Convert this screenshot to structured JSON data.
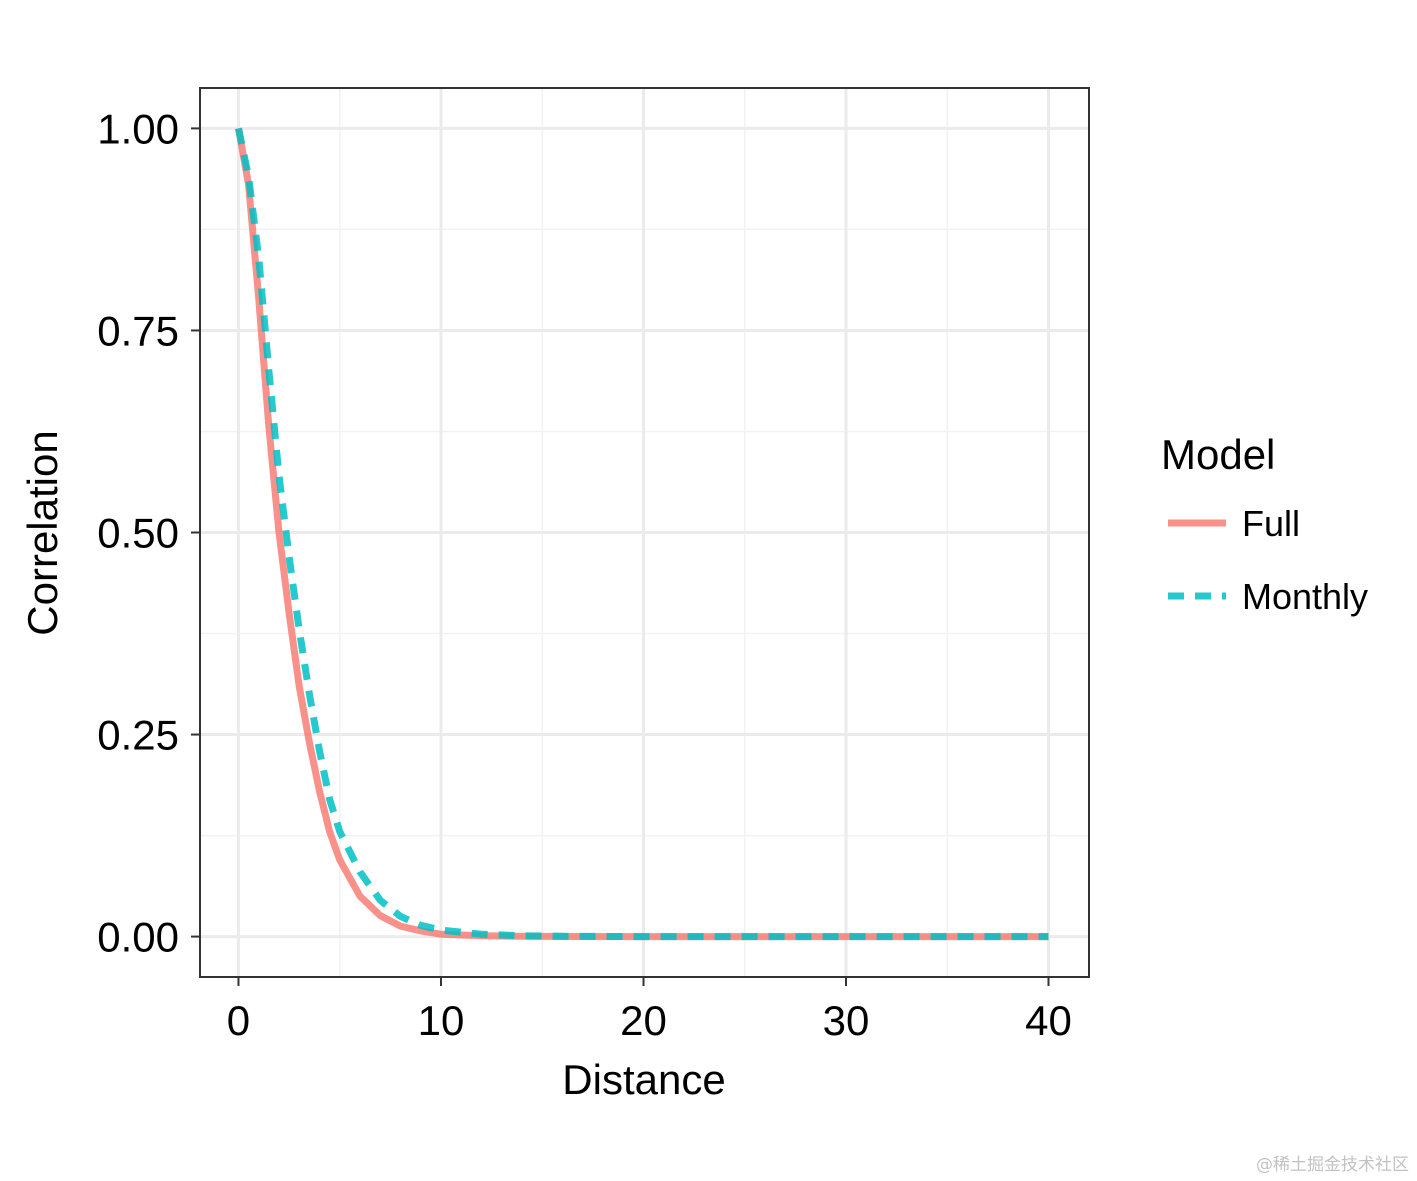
{
  "chart_data": {
    "type": "line",
    "title": "",
    "xlabel": "Distance",
    "ylabel": "Correlation",
    "xlim": [
      -1.9,
      42
    ],
    "ylim": [
      -0.05,
      1.05
    ],
    "x_ticks": [
      0,
      10,
      20,
      30,
      40
    ],
    "x_tick_labels": [
      "0",
      "10",
      "20",
      "30",
      "40"
    ],
    "y_ticks": [
      0,
      0.25,
      0.5,
      0.75,
      1
    ],
    "y_tick_labels": [
      "0.00",
      "0.25",
      "0.50",
      "0.75",
      "1.00"
    ],
    "grid": true,
    "legend": {
      "title": "Model",
      "placement": "right"
    },
    "series": [
      {
        "name": "Full",
        "color": "#F8766D",
        "linetype": "solid",
        "x": [
          0,
          0.5,
          1,
          1.5,
          2,
          2.5,
          3,
          3.5,
          4,
          4.5,
          5,
          6,
          7,
          8,
          9,
          10,
          12,
          14,
          16,
          20,
          25,
          30,
          35,
          40
        ],
        "y": [
          1.0,
          0.93,
          0.79,
          0.63,
          0.5,
          0.4,
          0.31,
          0.24,
          0.18,
          0.13,
          0.095,
          0.05,
          0.026,
          0.013,
          0.007,
          0.003,
          0.001,
          0.0003,
          0.0001,
          0,
          0,
          0,
          0,
          0
        ]
      },
      {
        "name": "Monthly",
        "color": "#00BFC4",
        "linetype": "dashed",
        "x": [
          0,
          0.5,
          1,
          1.5,
          2,
          2.5,
          3,
          3.5,
          4,
          4.5,
          5,
          6,
          7,
          8,
          9,
          10,
          12,
          14,
          16,
          20,
          25,
          30,
          35,
          40
        ],
        "y": [
          1.0,
          0.94,
          0.84,
          0.7,
          0.57,
          0.47,
          0.38,
          0.3,
          0.23,
          0.17,
          0.13,
          0.08,
          0.045,
          0.025,
          0.014,
          0.008,
          0.003,
          0.001,
          0.0003,
          0,
          0,
          0,
          0,
          0
        ]
      }
    ]
  },
  "watermark": "@稀土掘金技术社区"
}
